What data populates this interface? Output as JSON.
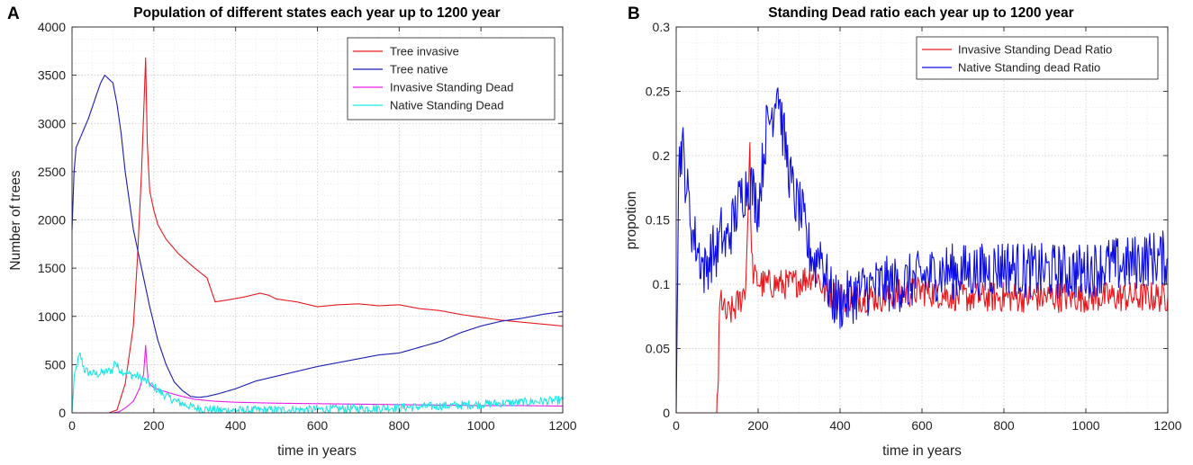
{
  "chart_data": [
    {
      "panel_letter": "A",
      "type": "line",
      "title": "Population of different states each year up to 1200 year",
      "xlabel": "time in years",
      "ylabel": "Number of trees",
      "xlim": [
        0,
        1200
      ],
      "ylim": [
        0,
        4000
      ],
      "x_ticks": [
        0,
        200,
        400,
        600,
        800,
        1000,
        1200
      ],
      "y_ticks": [
        0,
        500,
        1000,
        1500,
        2000,
        2500,
        3000,
        3500,
        4000
      ],
      "grid": true,
      "legend_position": "top-right",
      "series": [
        {
          "name": "Tree invasive",
          "color": "#e8191f",
          "x": [
            0,
            90,
            110,
            130,
            150,
            160,
            170,
            176,
            180,
            184,
            190,
            200,
            210,
            230,
            260,
            300,
            330,
            350,
            380,
            420,
            460,
            480,
            500,
            550,
            600,
            650,
            700,
            750,
            800,
            850,
            900,
            950,
            1000,
            1050,
            1100,
            1150,
            1200
          ],
          "y": [
            0,
            0,
            30,
            300,
            900,
            1600,
            2500,
            3200,
            3680,
            2800,
            2300,
            2100,
            1950,
            1800,
            1650,
            1500,
            1400,
            1150,
            1170,
            1200,
            1240,
            1220,
            1180,
            1150,
            1100,
            1120,
            1130,
            1110,
            1120,
            1080,
            1060,
            1020,
            990,
            960,
            940,
            920,
            900
          ]
        },
        {
          "name": "Tree native",
          "color": "#1a1ab4",
          "x": [
            0,
            5,
            10,
            20,
            40,
            60,
            70,
            80,
            90,
            100,
            110,
            120,
            130,
            150,
            170,
            190,
            210,
            230,
            250,
            270,
            290,
            310,
            330,
            360,
            400,
            450,
            500,
            550,
            600,
            650,
            700,
            750,
            800,
            850,
            900,
            950,
            1000,
            1050,
            1100,
            1150,
            1200
          ],
          "y": [
            1900,
            2500,
            2750,
            2850,
            3050,
            3300,
            3420,
            3500,
            3460,
            3420,
            3200,
            2900,
            2500,
            1900,
            1500,
            1100,
            750,
            500,
            320,
            230,
            170,
            160,
            170,
            200,
            250,
            330,
            380,
            430,
            480,
            520,
            560,
            600,
            620,
            680,
            740,
            830,
            900,
            950,
            980,
            1020,
            1050
          ]
        },
        {
          "name": "Invasive Standing Dead",
          "color": "#e61ee6",
          "x": [
            0,
            100,
            115,
            130,
            150,
            165,
            175,
            180,
            183,
            186,
            190,
            200,
            220,
            260,
            300,
            350,
            400,
            500,
            600,
            700,
            800,
            900,
            1000,
            1100,
            1200
          ],
          "y": [
            0,
            0,
            10,
            50,
            120,
            250,
            400,
            700,
            500,
            350,
            300,
            260,
            230,
            180,
            140,
            120,
            110,
            100,
            95,
            90,
            85,
            80,
            75,
            75,
            70
          ]
        },
        {
          "name": "Native Standing Dead",
          "color": "#1ee6e6",
          "x": [
            0,
            5,
            15,
            20,
            30,
            40,
            60,
            80,
            100,
            105,
            110,
            120,
            140,
            160,
            180,
            200,
            220,
            240,
            260,
            280,
            300,
            350,
            400,
            500,
            600,
            700,
            800,
            900,
            1000,
            1100,
            1200
          ],
          "y": [
            0,
            350,
            550,
            600,
            450,
            420,
            400,
            420,
            450,
            550,
            480,
            440,
            400,
            380,
            330,
            270,
            200,
            150,
            110,
            80,
            50,
            30,
            25,
            30,
            35,
            45,
            55,
            70,
            90,
            110,
            130
          ]
        }
      ]
    },
    {
      "panel_letter": "B",
      "type": "line",
      "title": "Standing Dead ratio each year up to 1200 year",
      "xlabel": "time in years",
      "ylabel": "propotion",
      "xlim": [
        0,
        1200
      ],
      "ylim": [
        0,
        0.3
      ],
      "x_ticks": [
        0,
        200,
        400,
        600,
        800,
        1000,
        1200
      ],
      "y_ticks": [
        0,
        0.05,
        0.1,
        0.15,
        0.2,
        0.25,
        0.3
      ],
      "grid": true,
      "legend_position": "top-right",
      "series": [
        {
          "name": "Invasive Standing Dead Ratio",
          "color": "#e8191f",
          "x": [
            0,
            99,
            100,
            103,
            106,
            110,
            120,
            140,
            160,
            170,
            178,
            180,
            184,
            190,
            210,
            240,
            280,
            320,
            340,
            360,
            400,
            500,
            600,
            700,
            800,
            900,
            1000,
            1100,
            1200
          ],
          "y": [
            0,
            0,
            0.01,
            0.03,
            0.08,
            0.09,
            0.075,
            0.08,
            0.09,
            0.1,
            0.19,
            0.2,
            0.12,
            0.105,
            0.1,
            0.1,
            0.1,
            0.105,
            0.11,
            0.095,
            0.09,
            0.09,
            0.095,
            0.09,
            0.09,
            0.09,
            0.09,
            0.09,
            0.09
          ]
        },
        {
          "name": "Native Standing dead Ratio",
          "color": "#0c0ce6",
          "x": [
            0,
            2,
            6,
            10,
            15,
            20,
            30,
            40,
            50,
            60,
            70,
            80,
            90,
            100,
            110,
            120,
            140,
            160,
            180,
            200,
            210,
            220,
            230,
            240,
            245,
            250,
            260,
            270,
            280,
            290,
            300,
            310,
            320,
            330,
            340,
            350,
            360,
            370,
            380,
            400,
            450,
            500,
            550,
            600,
            650,
            700,
            750,
            800,
            850,
            900,
            950,
            1000,
            1050,
            1100,
            1150,
            1200
          ],
          "y": [
            0,
            0.08,
            0.19,
            0.2,
            0.21,
            0.19,
            0.165,
            0.14,
            0.13,
            0.12,
            0.11,
            0.12,
            0.125,
            0.125,
            0.14,
            0.13,
            0.15,
            0.17,
            0.18,
            0.16,
            0.19,
            0.22,
            0.23,
            0.24,
            0.26,
            0.25,
            0.22,
            0.2,
            0.18,
            0.165,
            0.16,
            0.15,
            0.13,
            0.125,
            0.115,
            0.13,
            0.115,
            0.1,
            0.09,
            0.085,
            0.095,
            0.1,
            0.1,
            0.105,
            0.11,
            0.11,
            0.11,
            0.115,
            0.11,
            0.11,
            0.11,
            0.11,
            0.115,
            0.115,
            0.12,
            0.12
          ]
        }
      ]
    }
  ]
}
